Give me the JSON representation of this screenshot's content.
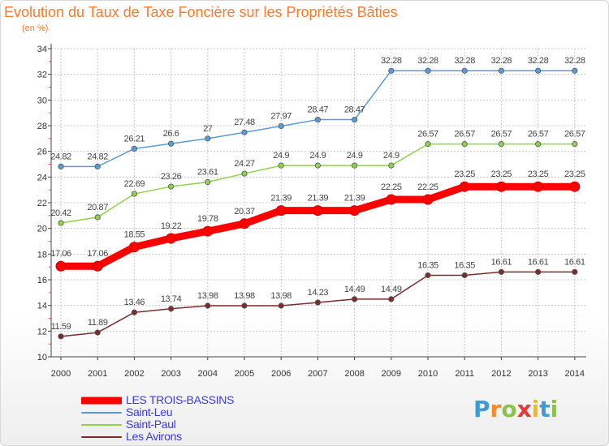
{
  "header": {
    "title": "Evolution du Taux de Taxe Foncière sur les Propriétés Bâties",
    "unit": "(en %)"
  },
  "logo": {
    "letters": [
      "P",
      "r",
      "o",
      "x",
      "i",
      "t",
      "i"
    ],
    "colors": [
      "#3e9bd6",
      "#f08a2a",
      "#8bc34a",
      "#e53935",
      "#f6b81e",
      "#3e9bd6",
      "#8bc34a"
    ]
  },
  "chart_data": {
    "type": "line",
    "title": "Evolution du Taux de Taxe Foncière sur les Propriétés Bâties",
    "ylabel": "(en %)",
    "xlabel": "",
    "ylim": [
      10,
      34
    ],
    "yticks": [
      10,
      12,
      14,
      16,
      18,
      20,
      22,
      24,
      26,
      28,
      30,
      32,
      34
    ],
    "x": [
      "2000",
      "2001",
      "2002",
      "2003",
      "2004",
      "2005",
      "2006",
      "2007",
      "2008",
      "2009",
      "2010",
      "2011",
      "2012",
      "2013",
      "2014"
    ],
    "grid": true,
    "legend": "bottom-left",
    "series": [
      {
        "name": "LES TROIS-BASSINS",
        "color": "#ff0000",
        "emphasis": true,
        "values": [
          17.06,
          17.06,
          18.55,
          19.22,
          19.78,
          20.37,
          21.39,
          21.39,
          21.39,
          22.25,
          22.25,
          23.25,
          23.25,
          23.25,
          23.25
        ],
        "labels": [
          "17.06",
          "17.06",
          "18.55",
          "19.22",
          "19.78",
          "20.37",
          "21.39",
          "21.39",
          "21.39",
          "22.25",
          "22.25",
          "23.25",
          "23.25",
          "23.25",
          "23.25"
        ]
      },
      {
        "name": "Saint-Leu",
        "color": "#5b9bd5",
        "emphasis": false,
        "values": [
          24.82,
          24.82,
          26.21,
          26.6,
          27,
          27.48,
          27.97,
          28.47,
          28.47,
          32.28,
          32.28,
          32.28,
          32.28,
          32.28,
          32.28
        ],
        "labels": [
          "24.82",
          "24.82",
          "26.21",
          "26.6",
          "27",
          "27.48",
          "27.97",
          "28.47",
          "28.47",
          "32.28",
          "32.28",
          "32.28",
          "32.28",
          "32.28",
          "32.28"
        ]
      },
      {
        "name": "Saint-Paul",
        "color": "#8fd14f",
        "emphasis": false,
        "values": [
          20.42,
          20.87,
          22.69,
          23.26,
          23.61,
          24.27,
          24.9,
          24.9,
          24.9,
          24.9,
          26.57,
          26.57,
          26.57,
          26.57,
          26.57
        ],
        "labels": [
          "20.42",
          "20.87",
          "22.69",
          "23.26",
          "23.61",
          "24.27",
          "24.9",
          "24.9",
          "24.9",
          "24.9",
          "26.57",
          "26.57",
          "26.57",
          "26.57",
          "26.57"
        ]
      },
      {
        "name": "Les Avirons",
        "color": "#7b2c2c",
        "emphasis": false,
        "values": [
          11.59,
          11.89,
          13.46,
          13.74,
          13.98,
          13.98,
          13.98,
          14.23,
          14.49,
          14.49,
          16.35,
          16.35,
          16.61,
          16.61,
          16.61
        ],
        "labels": [
          "11.59",
          "11.89",
          "13.46",
          "13.74",
          "13.98",
          "13.98",
          "13.98",
          "14.23",
          "14.49",
          "14.49",
          "16.35",
          "16.35",
          "16.61",
          "16.61",
          "16.61"
        ]
      }
    ]
  }
}
